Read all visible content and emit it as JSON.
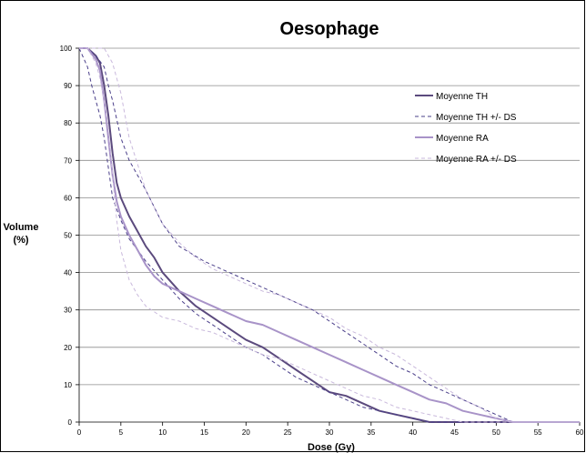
{
  "chart_data": {
    "type": "line",
    "title": "Oesophage",
    "ylabel_line1": "Volume",
    "ylabel_line2": "(%)",
    "xlabel": "Dose (Gy)",
    "xlim": [
      0,
      60
    ],
    "ylim": [
      0,
      100
    ],
    "xticks": [
      "0",
      "5",
      "10",
      "15",
      "20",
      "25",
      "30",
      "35",
      "40",
      "45",
      "50",
      "55",
      "60"
    ],
    "yticks": [
      "0",
      "10",
      "20",
      "30",
      "40",
      "50",
      "60",
      "70",
      "80",
      "90",
      "100"
    ],
    "grid": "horizontal",
    "legend_position": "top-right",
    "series": [
      {
        "name": "Moyenne TH",
        "color": "#5b4a7d",
        "dash": "solid",
        "x": [
          0,
          1,
          2,
          2.5,
          3,
          3.5,
          4,
          4.5,
          5,
          6,
          7,
          8,
          9,
          10,
          12,
          14,
          16,
          18,
          20,
          22,
          24,
          26,
          28,
          30,
          32,
          34,
          36,
          38,
          40,
          42,
          44,
          46,
          48,
          50,
          52,
          55,
          60
        ],
        "y": [
          100,
          100,
          98,
          96,
          90,
          82,
          72,
          64,
          60,
          55,
          51,
          47,
          44,
          40,
          35,
          31,
          28,
          25,
          22,
          20,
          17,
          14,
          11,
          8,
          7,
          5,
          3,
          2,
          1,
          0,
          0,
          0,
          0,
          0,
          0,
          0,
          0
        ]
      },
      {
        "name": "Moyenne TH +/- DS",
        "color": "#4a3f8a",
        "dash": "dashed",
        "x": [
          0,
          1,
          2,
          3,
          3.5,
          4,
          5,
          6,
          7,
          8,
          10,
          12,
          15,
          18,
          20,
          22,
          24,
          26,
          28,
          30,
          32,
          34,
          36,
          38,
          40,
          42,
          44,
          46,
          48,
          50,
          52,
          55,
          60
        ],
        "y": [
          100,
          100,
          98,
          95,
          90,
          86,
          76,
          70,
          66,
          62,
          53,
          47,
          43,
          40,
          38,
          36,
          34,
          32,
          30,
          27,
          24,
          21,
          18,
          15,
          13,
          10,
          8,
          6,
          4,
          2,
          0,
          0,
          0
        ]
      },
      {
        "name": "Moyenne TH +/- DS (lower)",
        "color": "#4a3f8a",
        "dash": "dashed",
        "x": [
          0,
          1,
          1.5,
          2,
          2.5,
          3,
          3.5,
          4,
          5,
          6,
          7,
          8,
          10,
          12,
          14,
          16,
          18,
          20,
          22,
          24,
          26,
          28,
          30,
          32,
          34,
          36,
          38,
          40,
          42,
          44,
          46,
          48,
          50,
          55,
          60
        ],
        "y": [
          100,
          95,
          90,
          86,
          82,
          76,
          68,
          60,
          54,
          49,
          46,
          43,
          38,
          33,
          29,
          26,
          23,
          20,
          18,
          15,
          12,
          10,
          8,
          6,
          4,
          3,
          2,
          1,
          0,
          0,
          0,
          0,
          0,
          0,
          0
        ],
        "hide_legend": true
      },
      {
        "name": "Moyenne RA",
        "color": "#a893c8",
        "dash": "solid",
        "x": [
          0,
          1,
          2,
          2.5,
          3,
          3.5,
          4,
          4.5,
          5,
          6,
          7,
          8,
          9,
          10,
          11,
          12,
          14,
          16,
          18,
          20,
          22,
          24,
          26,
          28,
          30,
          32,
          34,
          36,
          38,
          40,
          42,
          44,
          46,
          48,
          50,
          52,
          55,
          60
        ],
        "y": [
          100,
          100,
          97,
          94,
          86,
          76,
          66,
          59,
          55,
          50,
          46,
          42,
          39,
          37,
          36,
          35,
          33,
          31,
          29,
          27,
          26,
          24,
          22,
          20,
          18,
          16,
          14,
          12,
          10,
          8,
          6,
          5,
          3,
          2,
          1,
          0,
          0,
          0
        ]
      },
      {
        "name": "Moyenne RA +/- DS",
        "color": "#c9b9dc",
        "dash": "dashed",
        "x": [
          0,
          1,
          2,
          3,
          3.5,
          4,
          5,
          6,
          8,
          10,
          12,
          14,
          16,
          18,
          20,
          22,
          24,
          26,
          28,
          30,
          32,
          34,
          36,
          38,
          40,
          42,
          44,
          46,
          48,
          50,
          52,
          55,
          60
        ],
        "y": [
          100,
          100,
          100,
          100,
          98,
          96,
          88,
          76,
          62,
          53,
          48,
          44,
          41,
          39,
          37,
          35,
          34,
          32,
          30,
          28,
          25,
          23,
          20,
          18,
          15,
          12,
          9,
          6,
          4,
          1,
          0,
          0,
          0
        ]
      },
      {
        "name": "Moyenne RA +/- DS (lower)",
        "color": "#c9b9dc",
        "dash": "dashed",
        "x": [
          0,
          1,
          2,
          2.5,
          3,
          3.5,
          4,
          4.5,
          5,
          6,
          7,
          8,
          10,
          12,
          14,
          16,
          18,
          20,
          22,
          24,
          26,
          28,
          30,
          32,
          34,
          36,
          38,
          40,
          42,
          44,
          46,
          48,
          50,
          55,
          60
        ],
        "y": [
          100,
          100,
          96,
          92,
          86,
          78,
          66,
          54,
          46,
          38,
          34,
          31,
          28,
          27,
          25,
          24,
          22,
          20,
          18,
          17,
          15,
          13,
          11,
          9,
          7,
          6,
          4,
          3,
          2,
          1,
          0,
          0,
          0,
          0,
          0
        ],
        "hide_legend": true
      }
    ],
    "legend": [
      {
        "label": "Moyenne TH",
        "color": "#5b4a7d",
        "dash": "solid"
      },
      {
        "label": "Moyenne TH +/- DS",
        "color": "#4a3f8a",
        "dash": "dashed"
      },
      {
        "label": "Moyenne RA",
        "color": "#a893c8",
        "dash": "solid"
      },
      {
        "label": "Moyenne RA +/- DS",
        "color": "#c9b9dc",
        "dash": "dashed"
      }
    ]
  }
}
